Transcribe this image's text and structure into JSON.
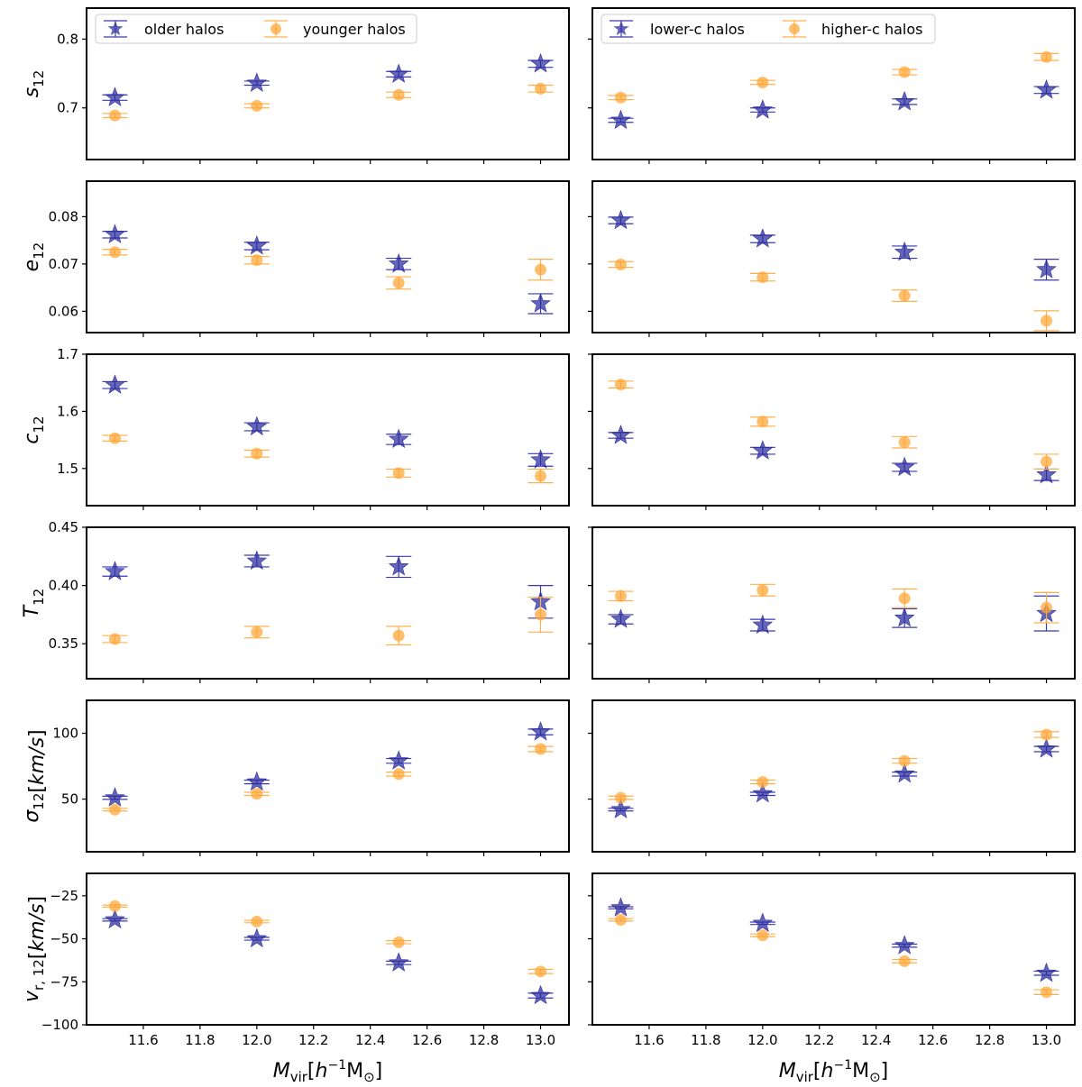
{
  "colors": {
    "older": "#2b2b9e",
    "younger": "#ffa533",
    "err_older": "#3a3ab0",
    "err_younger": "#ffb04d"
  },
  "legends": {
    "left": [
      "older halos",
      "younger halos"
    ],
    "right": [
      "lower-c halos",
      "higher-c halos"
    ]
  },
  "xlabel": "M_vir[h^-1 M_⊙]",
  "chart_data": {
    "type": "scatter",
    "x": [
      11.5,
      12.0,
      12.5,
      13.0
    ],
    "xlim": [
      11.4,
      13.1
    ],
    "xticks": [
      "11.6",
      "11.8",
      "12.0",
      "12.2",
      "12.4",
      "12.6",
      "12.8",
      "13.0"
    ],
    "legend_placement": "upper-left",
    "rows": [
      {
        "ylabel": "s12",
        "ylim": [
          0.625,
          0.845
        ],
        "yticks": [
          {
            "v": 0.7,
            "label": "0.7"
          },
          {
            "v": 0.8,
            "label": "0.8"
          }
        ],
        "left": {
          "series": [
            {
              "name": "older halos",
              "marker": "star",
              "values": [
                0.715,
                0.736,
                0.749,
                0.764
              ],
              "errors": [
                0.004,
                0.003,
                0.004,
                0.005
              ]
            },
            {
              "name": "younger halos",
              "marker": "circle",
              "values": [
                0.689,
                0.703,
                0.719,
                0.728
              ],
              "errors": [
                0.003,
                0.003,
                0.004,
                0.005
              ]
            }
          ]
        },
        "right": {
          "series": [
            {
              "name": "lower-c halos",
              "marker": "star",
              "values": [
                0.682,
                0.697,
                0.709,
                0.726
              ],
              "errors": [
                0.003,
                0.003,
                0.004,
                0.005
              ]
            },
            {
              "name": "higher-c halos",
              "marker": "circle",
              "values": [
                0.715,
                0.737,
                0.752,
                0.774
              ],
              "errors": [
                0.003,
                0.003,
                0.004,
                0.005
              ]
            }
          ]
        }
      },
      {
        "ylabel": "e12",
        "ylim": [
          0.0555,
          0.0875
        ],
        "yticks": [
          {
            "v": 0.06,
            "label": "0.06"
          },
          {
            "v": 0.07,
            "label": "0.07"
          },
          {
            "v": 0.08,
            "label": "0.08"
          }
        ],
        "left": {
          "series": [
            {
              "name": "older halos",
              "marker": "star",
              "values": [
                0.0762,
                0.0738,
                0.07,
                0.0616
              ],
              "errors": [
                0.0007,
                0.0008,
                0.0012,
                0.0021
              ]
            },
            {
              "name": "younger halos",
              "marker": "circle",
              "values": [
                0.0725,
                0.0708,
                0.066,
                0.0688
              ],
              "errors": [
                0.0006,
                0.0008,
                0.0013,
                0.0022
              ]
            }
          ]
        },
        "right": {
          "series": [
            {
              "name": "lower-c halos",
              "marker": "star",
              "values": [
                0.0792,
                0.0753,
                0.0725,
                0.0688
              ],
              "errors": [
                0.0007,
                0.0008,
                0.0013,
                0.0022
              ]
            },
            {
              "name": "higher-c halos",
              "marker": "circle",
              "values": [
                0.0699,
                0.0672,
                0.0633,
                0.058
              ],
              "errors": [
                0.0006,
                0.0008,
                0.0012,
                0.0021
              ]
            }
          ]
        }
      },
      {
        "ylabel": "c12",
        "ylim": [
          1.435,
          1.7
        ],
        "yticks": [
          {
            "v": 1.5,
            "label": "1.5"
          },
          {
            "v": 1.6,
            "label": "1.6"
          },
          {
            "v": 1.7,
            "label": "1.7"
          }
        ],
        "left": {
          "series": [
            {
              "name": "older halos",
              "marker": "star",
              "values": [
                1.646,
                1.573,
                1.551,
                1.515
              ],
              "errors": [
                0.006,
                0.007,
                0.009,
                0.011
              ]
            },
            {
              "name": "younger halos",
              "marker": "circle",
              "values": [
                1.553,
                1.526,
                1.492,
                1.487
              ],
              "errors": [
                0.005,
                0.006,
                0.007,
                0.012
              ]
            }
          ]
        },
        "right": {
          "series": [
            {
              "name": "lower-c halos",
              "marker": "star",
              "values": [
                1.558,
                1.531,
                1.502,
                1.489
              ],
              "errors": [
                0.005,
                0.006,
                0.007,
                0.01
              ]
            },
            {
              "name": "higher-c halos",
              "marker": "circle",
              "values": [
                1.647,
                1.582,
                1.546,
                1.512
              ],
              "errors": [
                0.006,
                0.008,
                0.01,
                0.013
              ]
            }
          ]
        }
      },
      {
        "ylabel": "T12",
        "ylim": [
          0.32,
          0.45
        ],
        "yticks": [
          {
            "v": 0.35,
            "label": "0.35"
          },
          {
            "v": 0.4,
            "label": "0.40"
          },
          {
            "v": 0.45,
            "label": "0.45"
          }
        ],
        "left": {
          "series": [
            {
              "name": "older halos",
              "marker": "star",
              "values": [
                0.412,
                0.421,
                0.416,
                0.386
              ],
              "errors": [
                0.004,
                0.005,
                0.009,
                0.014
              ]
            },
            {
              "name": "younger halos",
              "marker": "circle",
              "values": [
                0.354,
                0.36,
                0.357,
                0.375
              ],
              "errors": [
                0.003,
                0.005,
                0.008,
                0.015
              ]
            }
          ]
        },
        "right": {
          "series": [
            {
              "name": "lower-c halos",
              "marker": "star",
              "values": [
                0.371,
                0.366,
                0.372,
                0.376
              ],
              "errors": [
                0.004,
                0.005,
                0.008,
                0.015
              ]
            },
            {
              "name": "higher-c halos",
              "marker": "circle",
              "values": [
                0.391,
                0.396,
                0.389,
                0.381
              ],
              "errors": [
                0.004,
                0.005,
                0.008,
                0.013
              ]
            }
          ]
        }
      },
      {
        "ylabel": "σ12[km/s]",
        "ylim": [
          10,
          125
        ],
        "yticks": [
          {
            "v": 50,
            "label": "50"
          },
          {
            "v": 100,
            "label": "100"
          }
        ],
        "left": {
          "series": [
            {
              "name": "older halos",
              "marker": "star",
              "values": [
                51,
                63,
                79,
                101
              ],
              "errors": [
                1.2,
                1.4,
                1.8,
                2.2
              ]
            },
            {
              "name": "younger halos",
              "marker": "circle",
              "values": [
                42,
                54,
                69,
                88
              ],
              "errors": [
                1.0,
                1.2,
                1.5,
                2.0
              ]
            }
          ]
        },
        "right": {
          "series": [
            {
              "name": "lower-c halos",
              "marker": "star",
              "values": [
                42,
                54,
                69,
                88
              ],
              "errors": [
                1.0,
                1.2,
                1.5,
                2.0
              ]
            },
            {
              "name": "higher-c halos",
              "marker": "circle",
              "values": [
                51,
                63,
                79,
                99
              ],
              "errors": [
                1.2,
                1.4,
                1.8,
                2.2
              ]
            }
          ]
        }
      },
      {
        "ylabel": "v_r,12[km/s]",
        "ylim": [
          -100,
          -12
        ],
        "yticks": [
          {
            "v": -100,
            "label": "−100"
          },
          {
            "v": -75,
            "label": "−75"
          },
          {
            "v": -50,
            "label": "−50"
          },
          {
            "v": -25,
            "label": "−25"
          }
        ],
        "left": {
          "series": [
            {
              "name": "older halos",
              "marker": "star",
              "values": [
                -39,
                -50,
                -64,
                -83
              ],
              "errors": [
                0.7,
                0.8,
                1.0,
                1.4
              ]
            },
            {
              "name": "younger halos",
              "marker": "circle",
              "values": [
                -31,
                -40,
                -52,
                -69
              ],
              "errors": [
                0.6,
                0.7,
                0.9,
                1.2
              ]
            }
          ]
        },
        "right": {
          "series": [
            {
              "name": "lower-c halos",
              "marker": "star",
              "values": [
                -32,
                -41,
                -54,
                -70
              ],
              "errors": [
                0.6,
                0.7,
                0.9,
                1.2
              ]
            },
            {
              "name": "higher-c halos",
              "marker": "circle",
              "values": [
                -39,
                -48,
                -63,
                -81
              ],
              "errors": [
                0.7,
                0.8,
                1.0,
                1.4
              ]
            }
          ]
        }
      }
    ]
  }
}
